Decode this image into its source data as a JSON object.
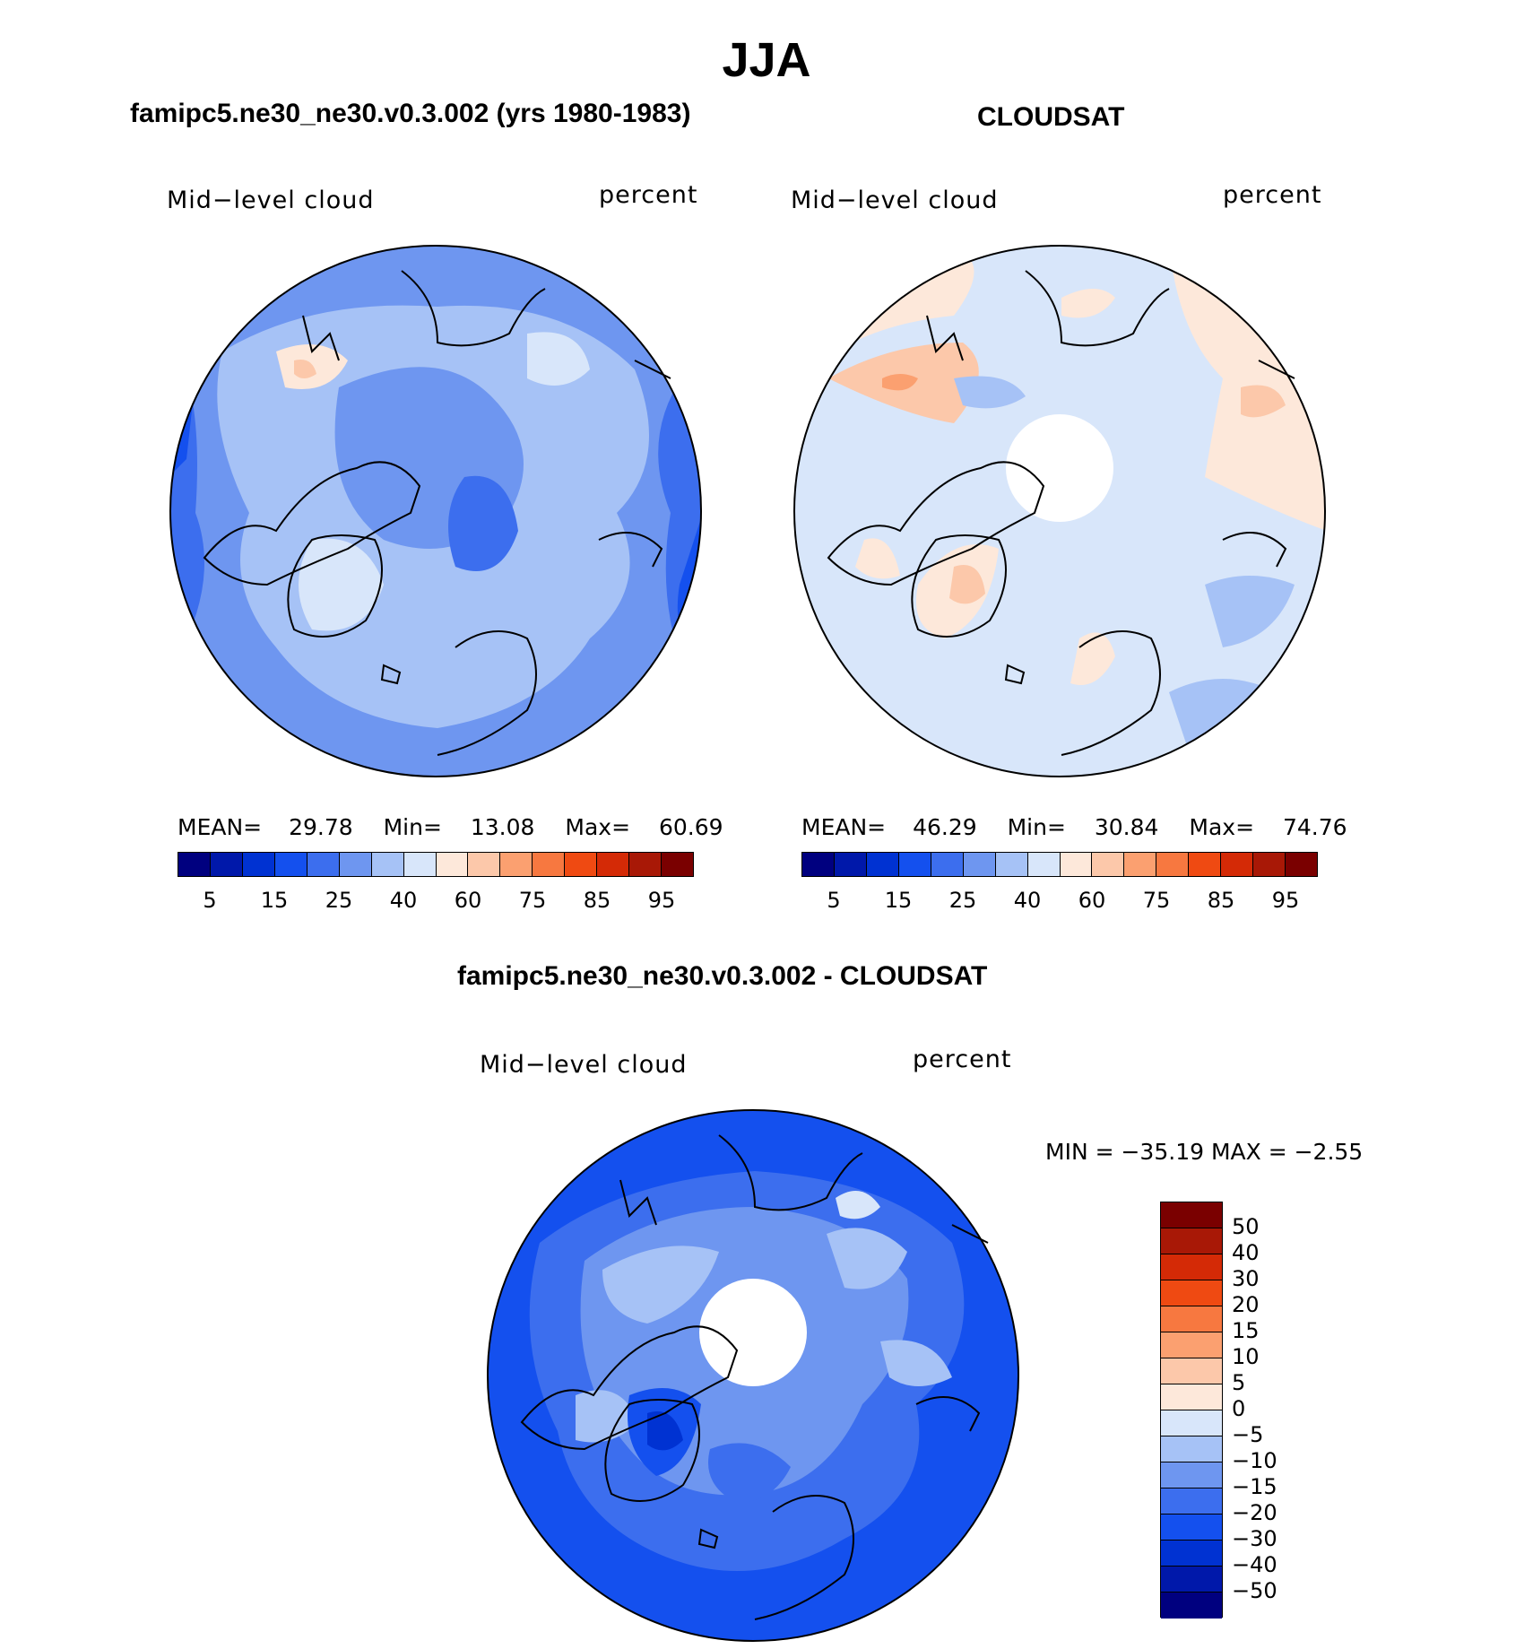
{
  "title": "JJA",
  "panels": {
    "left": {
      "title": "famipc5.ne30_ne30.v0.3.002 (yrs 1980-1983)",
      "variable": "Mid−level cloud",
      "units": "percent",
      "stats": {
        "mean_label": "MEAN=",
        "mean": "29.78",
        "min_label": "Min=",
        "min": "13.08",
        "max_label": "Max=",
        "max": "60.69"
      }
    },
    "right": {
      "title": "CLOUDSAT",
      "variable": "Mid−level cloud",
      "units": "percent",
      "stats": {
        "mean_label": "MEAN=",
        "mean": "46.29",
        "min_label": "Min=",
        "min": "30.84",
        "max_label": "Max=",
        "max": "74.76"
      }
    },
    "diff": {
      "title": "famipc5.ne30_ne30.v0.3.002 - CLOUDSAT",
      "variable": "Mid−level cloud",
      "units": "percent",
      "minmax": "MIN = −35.19 MAX =  −2.55"
    }
  },
  "colorbar_abs": {
    "colors": [
      "#00007f",
      "#0018aa",
      "#0032d2",
      "#1450ee",
      "#3c6eee",
      "#6e96f0",
      "#a6c2f6",
      "#d8e6fa",
      "#fde8da",
      "#fcc8aa",
      "#fba070",
      "#f77840",
      "#ef4a12",
      "#d42a06",
      "#a81806",
      "#7a0000"
    ],
    "tick_labels": [
      "5",
      "15",
      "25",
      "40",
      "60",
      "75",
      "85",
      "95"
    ]
  },
  "colorbar_diff": {
    "colors": [
      "#7a0000",
      "#a81806",
      "#d42a06",
      "#ef4a12",
      "#f77840",
      "#fba070",
      "#fcc8aa",
      "#fde8da",
      "#d8e6fa",
      "#a6c2f6",
      "#6e96f0",
      "#3c6eee",
      "#1450ee",
      "#0032d2",
      "#0018aa",
      "#00007f"
    ],
    "tick_labels": [
      "50",
      "40",
      "30",
      "20",
      "15",
      "10",
      "5",
      "0",
      "−5",
      "−10",
      "−15",
      "−20",
      "−30",
      "−40",
      "−50"
    ]
  }
}
